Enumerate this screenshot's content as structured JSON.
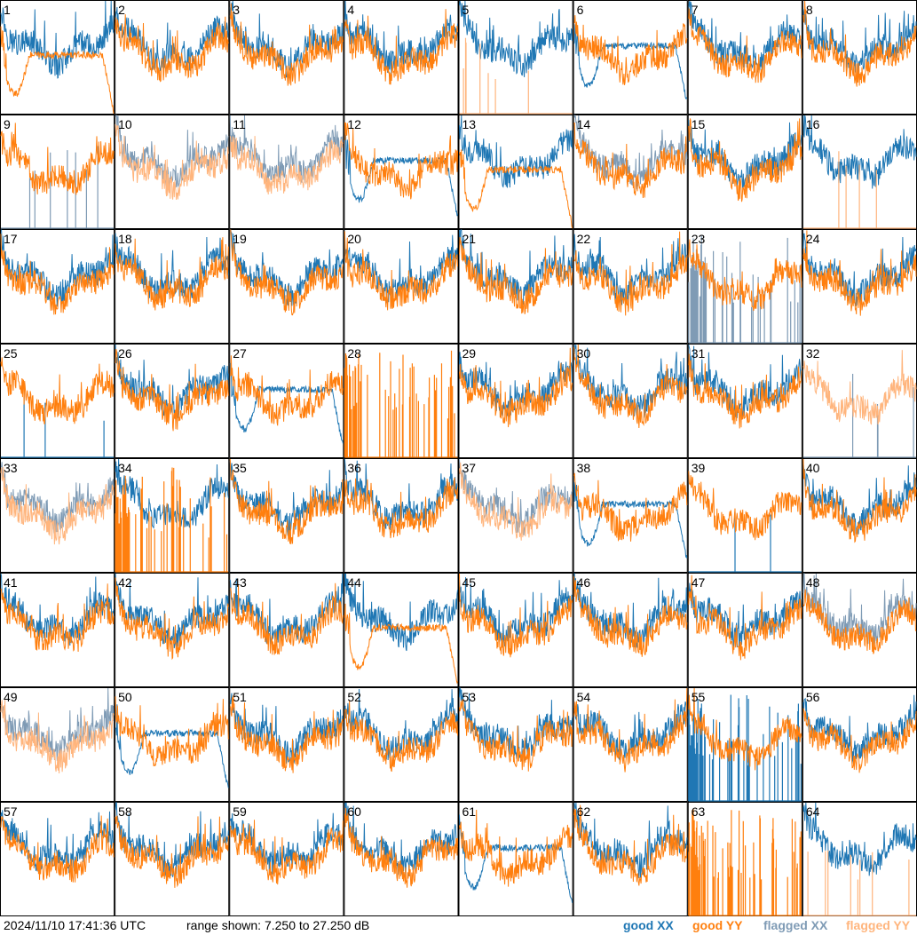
{
  "timestamp": "2024/11/10 17:41:36 UTC",
  "range_text": "range shown: 7.250 to 27.250 dB",
  "legend": {
    "good_xx": "good XX",
    "good_yy": "good YY",
    "flagged_xx": "flagged XX",
    "flagged_yy": "flagged YY"
  },
  "colors": {
    "good_xx": "#1f77b4",
    "good_yy": "#ff7f0e",
    "flagged_xx": "#7f9bb5",
    "flagged_yy": "#ffb57d",
    "grid": "#000000"
  },
  "chart_data": {
    "type": "line",
    "title": "",
    "ylim": [
      7.25,
      27.25
    ],
    "grid_rows": 8,
    "grid_cols": 8,
    "panels": [
      {
        "id": "1",
        "xx": "good",
        "yy": "good",
        "shape_xx": "normal",
        "shape_yy": "dip_edges"
      },
      {
        "id": "2",
        "xx": "good",
        "yy": "good",
        "shape_xx": "normal",
        "shape_yy": "normal"
      },
      {
        "id": "3",
        "xx": "good",
        "yy": "good",
        "shape_xx": "normal",
        "shape_yy": "normal"
      },
      {
        "id": "4",
        "xx": "good",
        "yy": "good",
        "shape_xx": "normal",
        "shape_yy": "normal"
      },
      {
        "id": "5",
        "xx": "good",
        "yy": "flagged",
        "shape_xx": "normal",
        "shape_yy": "spikes"
      },
      {
        "id": "6",
        "xx": "good",
        "yy": "good",
        "shape_xx": "dip_edges",
        "shape_yy": "normal"
      },
      {
        "id": "7",
        "xx": "good",
        "yy": "good",
        "shape_xx": "normal",
        "shape_yy": "normal"
      },
      {
        "id": "8",
        "xx": "good",
        "yy": "good",
        "shape_xx": "normal",
        "shape_yy": "normal"
      },
      {
        "id": "9",
        "xx": "flagged",
        "yy": "good",
        "shape_xx": "spikes",
        "shape_yy": "normal"
      },
      {
        "id": "10",
        "xx": "flagged",
        "yy": "flagged",
        "shape_xx": "normal",
        "shape_yy": "normal"
      },
      {
        "id": "11",
        "xx": "flagged",
        "yy": "flagged",
        "shape_xx": "normal",
        "shape_yy": "normal"
      },
      {
        "id": "12",
        "xx": "good",
        "yy": "good",
        "shape_xx": "dip_edges",
        "shape_yy": "normal"
      },
      {
        "id": "13",
        "xx": "good",
        "yy": "good",
        "shape_xx": "normal",
        "shape_yy": "dip_edges"
      },
      {
        "id": "14",
        "xx": "flagged",
        "yy": "good",
        "shape_xx": "normal",
        "shape_yy": "normal"
      },
      {
        "id": "15",
        "xx": "good",
        "yy": "good",
        "shape_xx": "normal",
        "shape_yy": "normal"
      },
      {
        "id": "16",
        "xx": "good",
        "yy": "flagged",
        "shape_xx": "normal",
        "shape_yy": "spikes"
      },
      {
        "id": "17",
        "xx": "good",
        "yy": "good",
        "shape_xx": "normal",
        "shape_yy": "normal"
      },
      {
        "id": "18",
        "xx": "good",
        "yy": "good",
        "shape_xx": "normal",
        "shape_yy": "normal"
      },
      {
        "id": "19",
        "xx": "good",
        "yy": "good",
        "shape_xx": "normal",
        "shape_yy": "normal"
      },
      {
        "id": "20",
        "xx": "good",
        "yy": "good",
        "shape_xx": "normal",
        "shape_yy": "normal"
      },
      {
        "id": "21",
        "xx": "good",
        "yy": "good",
        "shape_xx": "normal",
        "shape_yy": "normal"
      },
      {
        "id": "22",
        "xx": "good",
        "yy": "good",
        "shape_xx": "normal",
        "shape_yy": "normal"
      },
      {
        "id": "23",
        "xx": "flagged",
        "yy": "good",
        "shape_xx": "spikes_dense",
        "shape_yy": "normal"
      },
      {
        "id": "24",
        "xx": "good",
        "yy": "good",
        "shape_xx": "normal",
        "shape_yy": "normal"
      },
      {
        "id": "25",
        "xx": "good",
        "yy": "good",
        "shape_xx": "spikes",
        "shape_yy": "normal"
      },
      {
        "id": "26",
        "xx": "good",
        "yy": "good",
        "shape_xx": "normal",
        "shape_yy": "normal"
      },
      {
        "id": "27",
        "xx": "good",
        "yy": "good",
        "shape_xx": "dip_edges",
        "shape_yy": "normal"
      },
      {
        "id": "28",
        "xx": "good",
        "yy": "good",
        "shape_xx": "none",
        "shape_yy": "spikes_dense"
      },
      {
        "id": "29",
        "xx": "good",
        "yy": "good",
        "shape_xx": "normal",
        "shape_yy": "normal"
      },
      {
        "id": "30",
        "xx": "good",
        "yy": "good",
        "shape_xx": "normal",
        "shape_yy": "normal"
      },
      {
        "id": "31",
        "xx": "good",
        "yy": "good",
        "shape_xx": "normal",
        "shape_yy": "normal"
      },
      {
        "id": "32",
        "xx": "flagged",
        "yy": "flagged",
        "shape_xx": "spikes",
        "shape_yy": "normal"
      },
      {
        "id": "33",
        "xx": "flagged",
        "yy": "flagged",
        "shape_xx": "normal",
        "shape_yy": "normal"
      },
      {
        "id": "34",
        "xx": "good",
        "yy": "good",
        "shape_xx": "normal",
        "shape_yy": "spikes_dense"
      },
      {
        "id": "35",
        "xx": "good",
        "yy": "good",
        "shape_xx": "normal",
        "shape_yy": "normal"
      },
      {
        "id": "36",
        "xx": "good",
        "yy": "good",
        "shape_xx": "normal",
        "shape_yy": "normal"
      },
      {
        "id": "37",
        "xx": "flagged",
        "yy": "flagged",
        "shape_xx": "normal",
        "shape_yy": "normal"
      },
      {
        "id": "38",
        "xx": "good",
        "yy": "good",
        "shape_xx": "dip_edges",
        "shape_yy": "normal"
      },
      {
        "id": "39",
        "xx": "good",
        "yy": "good",
        "shape_xx": "spikes",
        "shape_yy": "normal"
      },
      {
        "id": "40",
        "xx": "good",
        "yy": "good",
        "shape_xx": "normal",
        "shape_yy": "normal"
      },
      {
        "id": "41",
        "xx": "good",
        "yy": "good",
        "shape_xx": "normal",
        "shape_yy": "normal"
      },
      {
        "id": "42",
        "xx": "good",
        "yy": "good",
        "shape_xx": "normal",
        "shape_yy": "normal"
      },
      {
        "id": "43",
        "xx": "good",
        "yy": "good",
        "shape_xx": "normal",
        "shape_yy": "normal"
      },
      {
        "id": "44",
        "xx": "good",
        "yy": "good",
        "shape_xx": "normal",
        "shape_yy": "dip_edges"
      },
      {
        "id": "45",
        "xx": "good",
        "yy": "good",
        "shape_xx": "normal",
        "shape_yy": "normal"
      },
      {
        "id": "46",
        "xx": "good",
        "yy": "good",
        "shape_xx": "normal",
        "shape_yy": "normal"
      },
      {
        "id": "47",
        "xx": "good",
        "yy": "good",
        "shape_xx": "normal",
        "shape_yy": "normal"
      },
      {
        "id": "48",
        "xx": "flagged",
        "yy": "good",
        "shape_xx": "normal",
        "shape_yy": "normal"
      },
      {
        "id": "49",
        "xx": "flagged",
        "yy": "flagged",
        "shape_xx": "normal",
        "shape_yy": "normal"
      },
      {
        "id": "50",
        "xx": "good",
        "yy": "good",
        "shape_xx": "dip_edges",
        "shape_yy": "normal"
      },
      {
        "id": "51",
        "xx": "good",
        "yy": "good",
        "shape_xx": "normal",
        "shape_yy": "normal"
      },
      {
        "id": "52",
        "xx": "good",
        "yy": "good",
        "shape_xx": "normal",
        "shape_yy": "normal"
      },
      {
        "id": "53",
        "xx": "good",
        "yy": "good",
        "shape_xx": "normal",
        "shape_yy": "normal"
      },
      {
        "id": "54",
        "xx": "good",
        "yy": "good",
        "shape_xx": "normal",
        "shape_yy": "normal"
      },
      {
        "id": "55",
        "xx": "good",
        "yy": "good",
        "shape_xx": "spikes_dense",
        "shape_yy": "normal"
      },
      {
        "id": "56",
        "xx": "good",
        "yy": "good",
        "shape_xx": "normal",
        "shape_yy": "normal"
      },
      {
        "id": "57",
        "xx": "good",
        "yy": "good",
        "shape_xx": "normal",
        "shape_yy": "normal"
      },
      {
        "id": "58",
        "xx": "good",
        "yy": "good",
        "shape_xx": "normal",
        "shape_yy": "normal"
      },
      {
        "id": "59",
        "xx": "good",
        "yy": "good",
        "shape_xx": "normal",
        "shape_yy": "normal"
      },
      {
        "id": "60",
        "xx": "good",
        "yy": "good",
        "shape_xx": "normal",
        "shape_yy": "normal"
      },
      {
        "id": "61",
        "xx": "good",
        "yy": "good",
        "shape_xx": "dip_edges",
        "shape_yy": "normal"
      },
      {
        "id": "62",
        "xx": "good",
        "yy": "good",
        "shape_xx": "normal",
        "shape_yy": "normal"
      },
      {
        "id": "63",
        "xx": "good",
        "yy": "good",
        "shape_xx": "none",
        "shape_yy": "spikes_dense"
      },
      {
        "id": "64",
        "xx": "good",
        "yy": "flagged",
        "shape_xx": "normal",
        "shape_yy": "spikes"
      }
    ]
  }
}
